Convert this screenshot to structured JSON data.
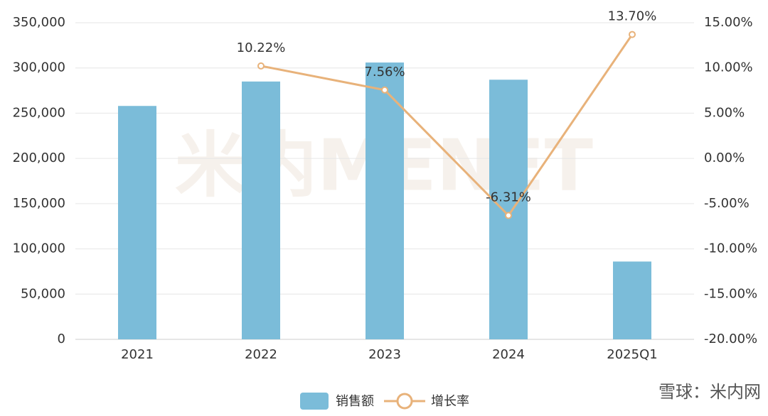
{
  "chart_data": {
    "type": "bar-line",
    "categories": [
      "2021",
      "2022",
      "2023",
      "2024",
      "2025Q1"
    ],
    "series": [
      {
        "name": "销售额",
        "type": "bar",
        "color": "#7bbcd9",
        "values": [
          258000,
          285000,
          306000,
          287000,
          86000
        ]
      },
      {
        "name": "增长率",
        "type": "line",
        "axis": "y2",
        "color": "#e8b27a",
        "values": [
          null,
          10.22,
          7.56,
          -6.31,
          13.7
        ],
        "value_labels": [
          null,
          "10.22%",
          "7.56%",
          "-6.31%",
          "13.70%"
        ]
      }
    ],
    "ylim": [
      0,
      350000
    ],
    "yticks": [
      0,
      {
        "value": 50000,
        "label": "50,000"
      },
      {
        "value": 100000,
        "label": "100,000"
      },
      {
        "value": 150000,
        "label": "150,000"
      },
      {
        "value": 200000,
        "label": "200,000"
      },
      {
        "value": 250000,
        "label": "250,000"
      },
      {
        "value": 300000,
        "label": "300,000"
      },
      {
        "value": 350000,
        "label": "350,000"
      }
    ],
    "y2lim": [
      -20,
      15
    ],
    "y2ticks": [
      {
        "value": -20,
        "label": "-20.00%"
      },
      {
        "value": -15,
        "label": "-15.00%"
      },
      {
        "value": -10,
        "label": "-10.00%"
      },
      {
        "value": -5,
        "label": "-5.00%"
      },
      {
        "value": 0,
        "label": "0.00%"
      },
      {
        "value": 5,
        "label": "5.00%"
      },
      {
        "value": 10,
        "label": "10.00%"
      },
      {
        "value": 15,
        "label": "15.00%"
      }
    ],
    "grid": true,
    "legend": "bottom",
    "watermark": "米内MENET",
    "source_mark": "雪球：米内网"
  }
}
